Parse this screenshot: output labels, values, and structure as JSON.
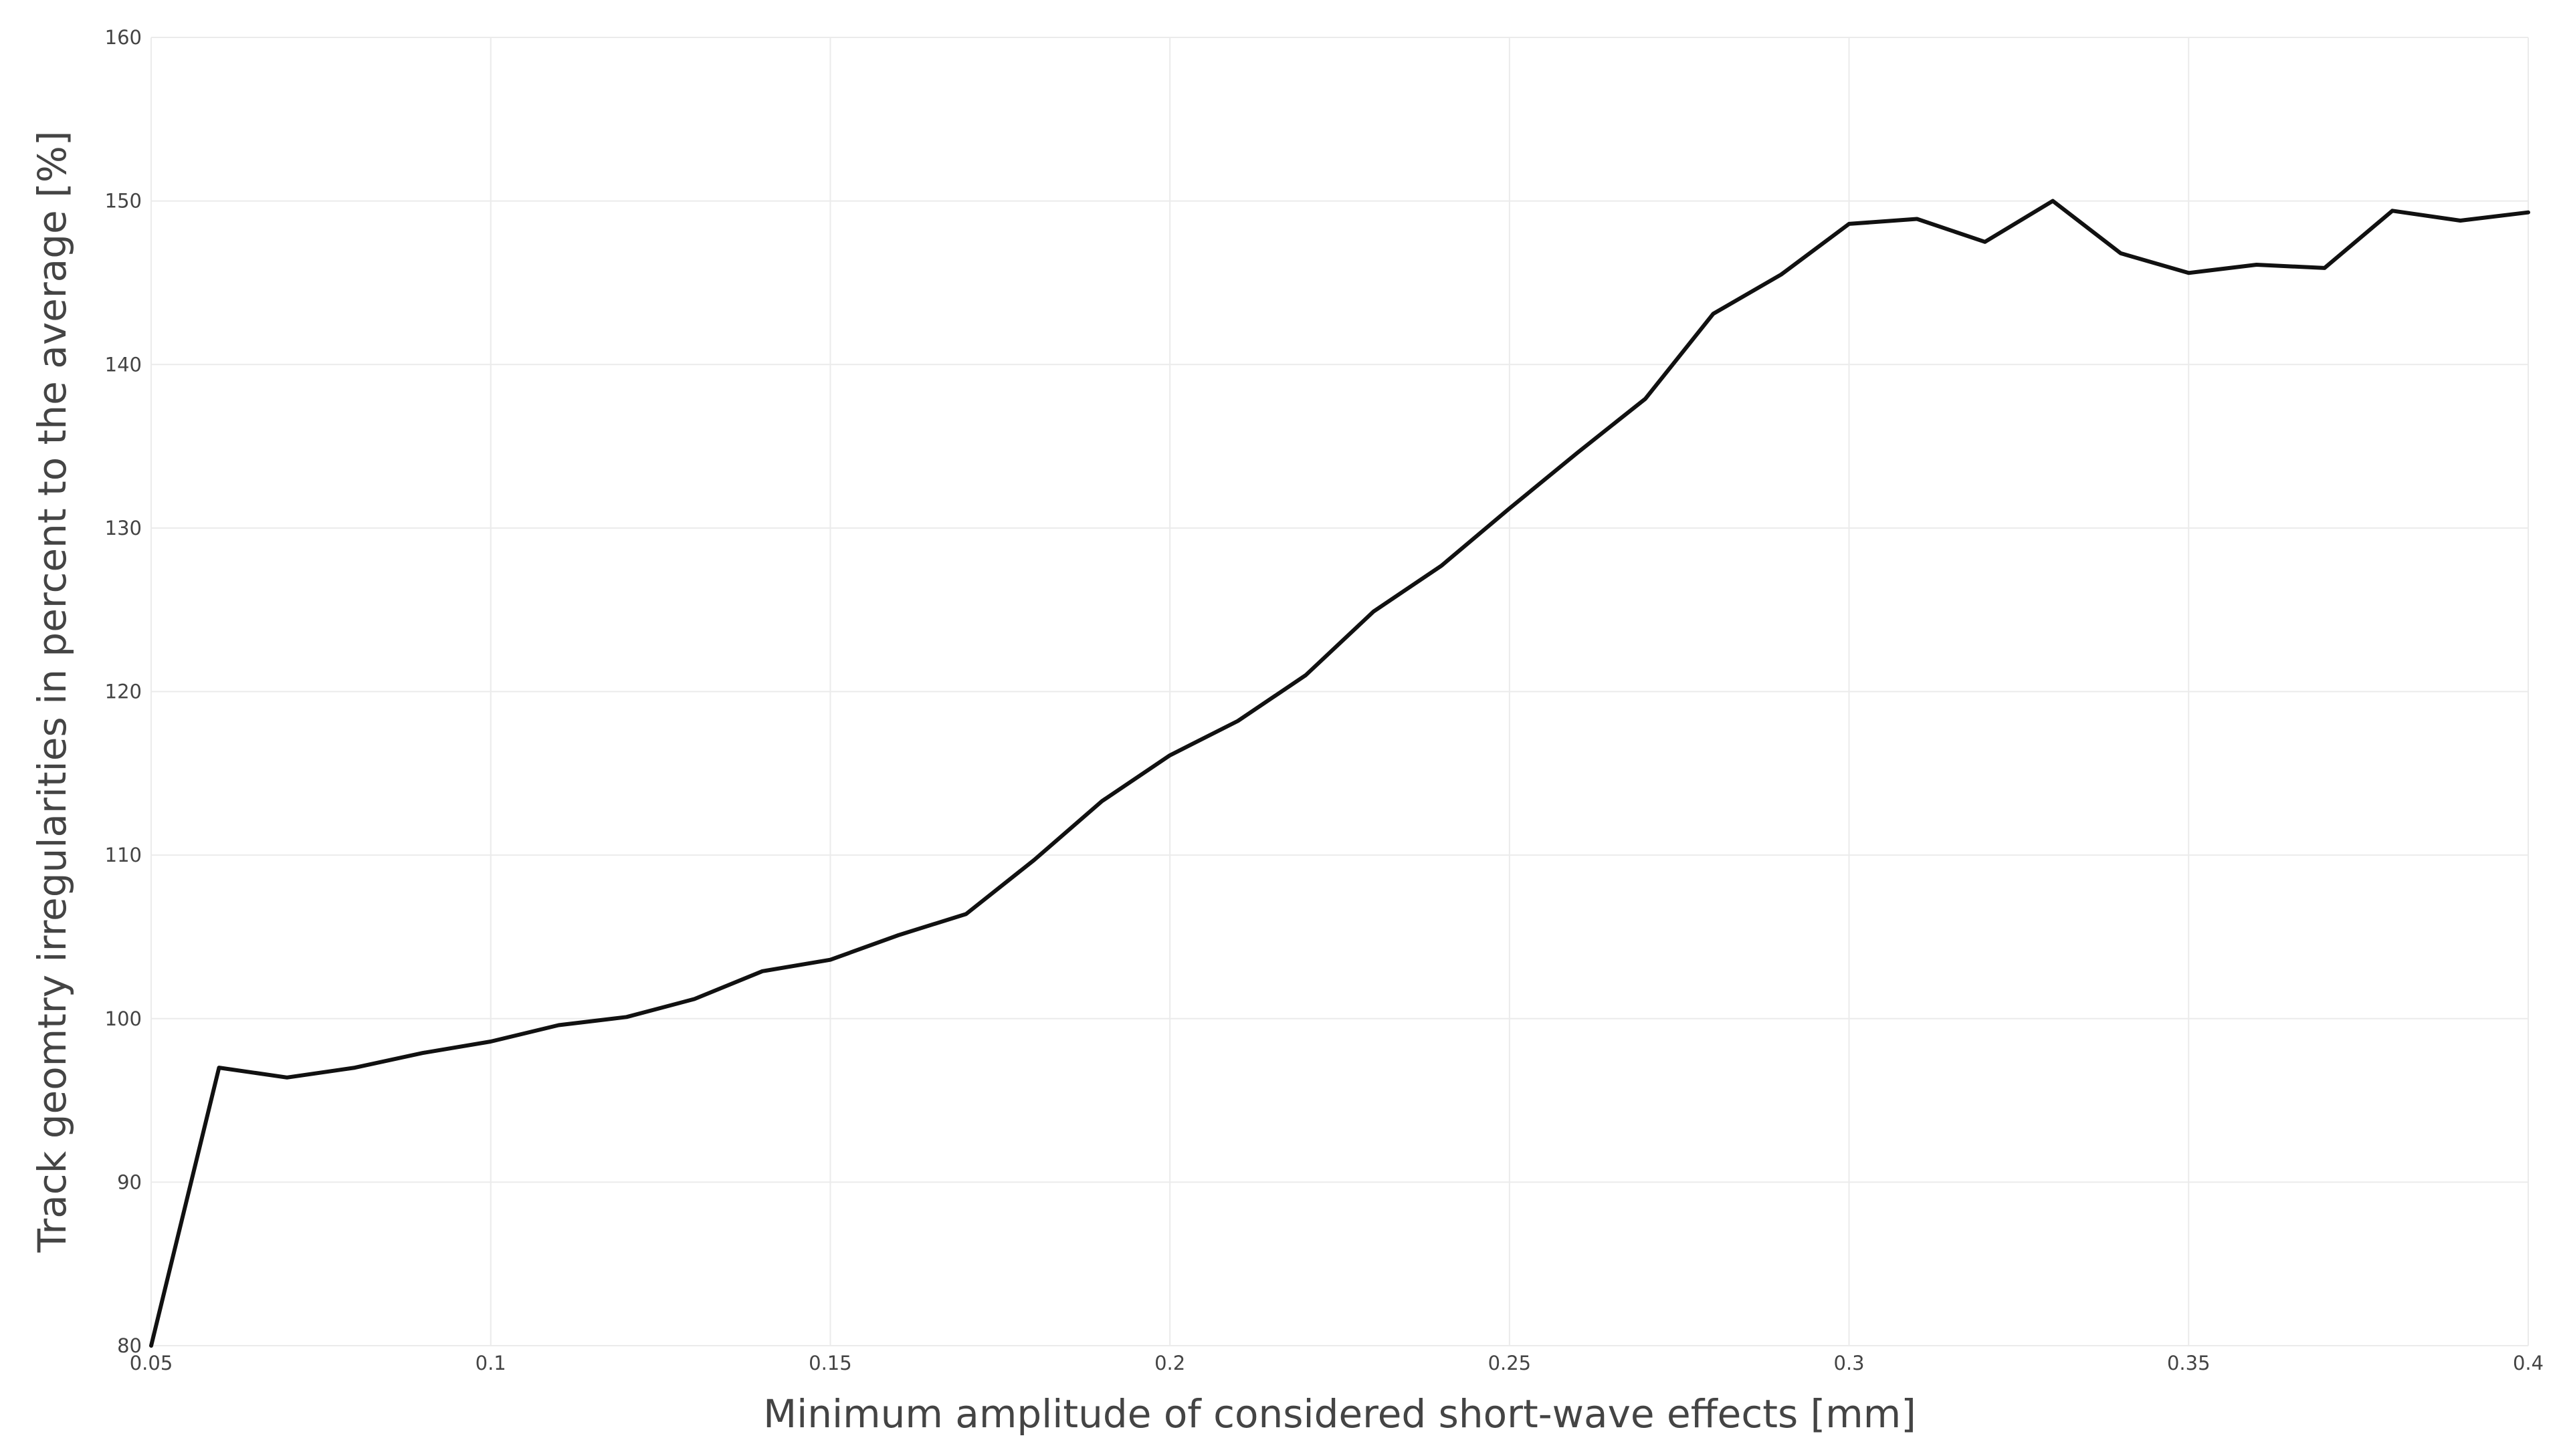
{
  "chart_data": {
    "type": "line",
    "title": "",
    "xlabel": "Minimum amplitude of considered short-wave effects [mm]",
    "ylabel": "Track geomtry irregularities in percent to the average [%]",
    "xlim": [
      0.05,
      0.4
    ],
    "ylim": [
      80,
      160
    ],
    "xticks": [
      0.05,
      0.1,
      0.15,
      0.2,
      0.25,
      0.3,
      0.35,
      0.4
    ],
    "xtick_labels": [
      "0.05",
      "0.1",
      "0.15",
      "0.2",
      "0.25",
      "0.3",
      "0.35",
      "0.4"
    ],
    "yticks": [
      80,
      90,
      100,
      110,
      120,
      130,
      140,
      150,
      160
    ],
    "ytick_labels": [
      "80",
      "90",
      "100",
      "110",
      "120",
      "130",
      "140",
      "150",
      "160"
    ],
    "grid": true,
    "legend": "none",
    "series": [
      {
        "color": "#111111",
        "x": [
          0.05,
          0.06,
          0.07,
          0.08,
          0.09,
          0.1,
          0.11,
          0.12,
          0.13,
          0.14,
          0.15,
          0.16,
          0.17,
          0.18,
          0.19,
          0.2,
          0.21,
          0.22,
          0.23,
          0.24,
          0.25,
          0.26,
          0.27,
          0.28,
          0.29,
          0.3,
          0.31,
          0.32,
          0.33,
          0.34,
          0.35,
          0.36,
          0.37,
          0.38,
          0.39,
          0.4
        ],
        "y": [
          80.0,
          97.0,
          96.4,
          97.0,
          97.9,
          98.6,
          99.6,
          100.1,
          101.2,
          102.9,
          103.6,
          105.1,
          106.4,
          109.7,
          113.3,
          116.1,
          118.2,
          121.0,
          124.9,
          127.7,
          131.2,
          134.6,
          137.9,
          143.1,
          145.5,
          148.6,
          148.9,
          147.5,
          150.0,
          146.8,
          145.6,
          146.1,
          145.9,
          149.4,
          148.8,
          149.3
        ]
      }
    ]
  }
}
